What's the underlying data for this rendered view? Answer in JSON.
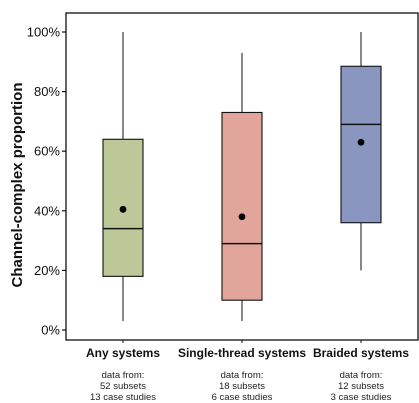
{
  "chart_data": {
    "type": "boxplot",
    "ylabel": "Channel-complex proportion",
    "ylim": [
      0,
      100
    ],
    "yticks": [
      0,
      20,
      40,
      60,
      80,
      100
    ],
    "ytick_labels": [
      "0%",
      "20%",
      "40%",
      "60%",
      "80%",
      "100%"
    ],
    "categories": [
      "Any systems",
      "Single-thread systems",
      "Braided systems"
    ],
    "boxes": [
      {
        "category": "Any systems",
        "min": 3,
        "q1": 18,
        "median": 34,
        "q3": 64,
        "max": 100,
        "mean": 40.5,
        "color": "#bcc897"
      },
      {
        "category": "Single-thread systems",
        "min": 3,
        "q1": 10,
        "median": 29,
        "q3": 73,
        "max": 93,
        "mean": 38,
        "color": "#e1a59b"
      },
      {
        "category": "Braided systems",
        "min": 20,
        "q1": 36,
        "median": 69,
        "q3": 88.5,
        "max": 100,
        "mean": 63,
        "color": "#8997c0"
      }
    ],
    "notes": [
      [
        "data from:",
        "52 subsets",
        "13 case studies"
      ],
      [
        "data from:",
        "18 subsets",
        "6 case studies"
      ],
      [
        "data from:",
        "12 subsets",
        "3 case studies"
      ]
    ],
    "grid": false
  }
}
